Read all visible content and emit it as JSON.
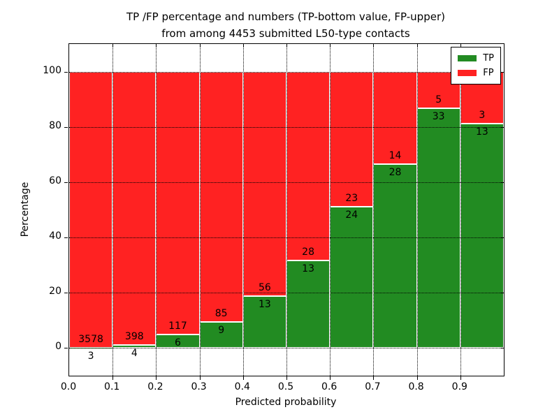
{
  "title": {
    "line1": "TP /FP percentage and numbers (TP-bottom value, FP-upper)",
    "line2": "from among 4453 submitted L50-type contacts"
  },
  "axes": {
    "xlabel": "Predicted probability",
    "ylabel": "Percentage",
    "xtick_labels": [
      "0.0",
      "0.1",
      "0.2",
      "0.3",
      "0.4",
      "0.5",
      "0.6",
      "0.7",
      "0.8",
      "0.9"
    ],
    "ytick_labels": [
      "0",
      "20",
      "40",
      "60",
      "80",
      "100"
    ]
  },
  "legend": {
    "entries": [
      {
        "label": "TP",
        "color": "#228b22"
      },
      {
        "label": "FP",
        "color": "#ff2222"
      }
    ]
  },
  "colors": {
    "tp_green": "#228b22",
    "fp_red": "#ff2222",
    "bar_edge": "#ffffff",
    "grid": "#000000",
    "axis": "#000000",
    "background": "#ffffff"
  },
  "chart_data": {
    "type": "bar",
    "stacked": true,
    "orientation": "vertical",
    "title": "TP /FP percentage and numbers (TP-bottom value, FP-upper) from among 4453 submitted L50-type contacts",
    "xlabel": "Predicted probability",
    "ylabel": "Percentage",
    "total_contacts": 4453,
    "x_bin_edges": [
      0.0,
      0.1,
      0.2,
      0.3,
      0.4,
      0.5,
      0.6,
      0.7,
      0.8,
      0.9,
      1.0
    ],
    "xticks": [
      0.0,
      0.1,
      0.2,
      0.3,
      0.4,
      0.5,
      0.6,
      0.7,
      0.8,
      0.9
    ],
    "yticks": [
      0,
      20,
      40,
      60,
      80,
      100
    ],
    "xlim": [
      0.0,
      1.0
    ],
    "ylim": [
      -10,
      110
    ],
    "grid": true,
    "legend_position": "upper right",
    "series": [
      {
        "name": "TP",
        "color": "#228b22",
        "counts": [
          3,
          4,
          6,
          9,
          13,
          13,
          24,
          28,
          33,
          13
        ]
      },
      {
        "name": "FP",
        "color": "#ff2222",
        "counts": [
          3578,
          398,
          117,
          85,
          56,
          28,
          23,
          14,
          5,
          3
        ]
      }
    ],
    "tp_percent_of_bin": [
      0.08,
      1.0,
      4.88,
      9.57,
      18.84,
      31.71,
      51.06,
      66.67,
      86.84,
      81.25
    ],
    "bar_label_note": "counts drawn on bars: TP count below segment boundary, FP count above it"
  }
}
